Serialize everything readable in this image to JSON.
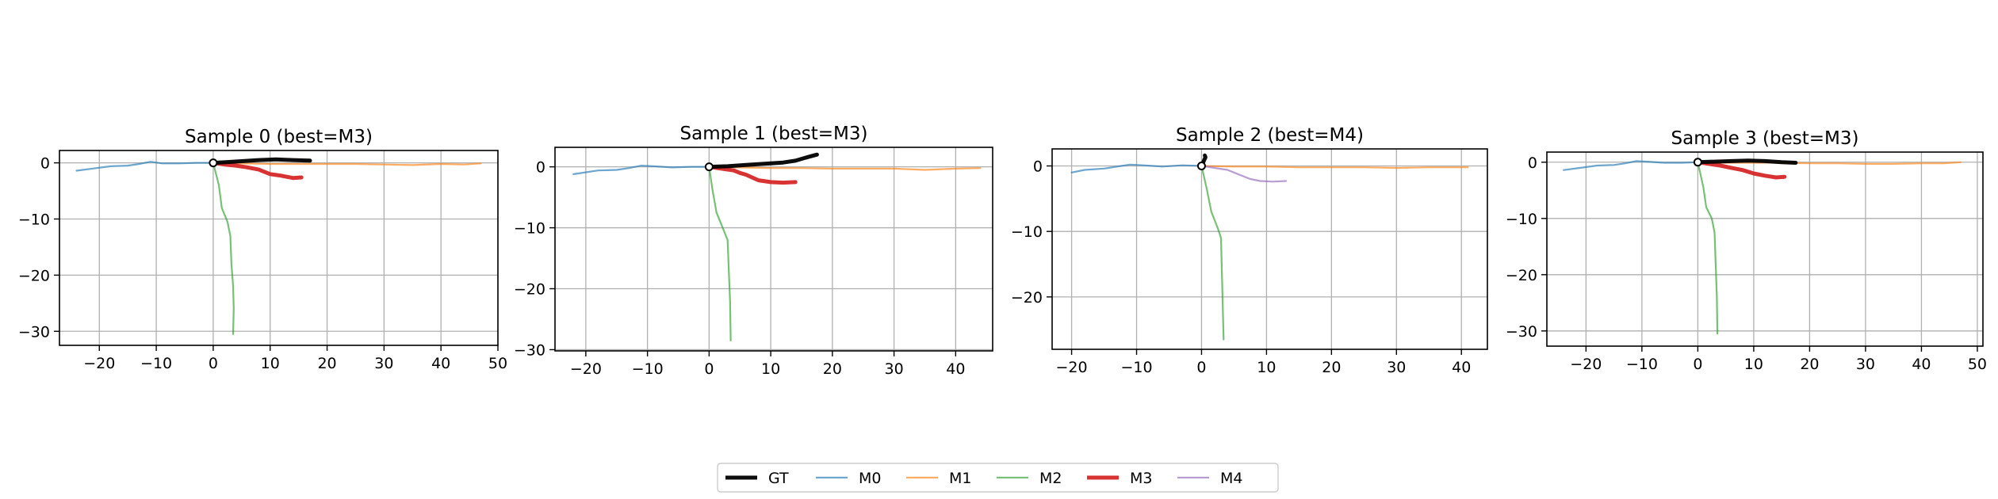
{
  "legend": {
    "placement": "bottom-center",
    "entries": [
      {
        "label": "GT",
        "color": "#000000",
        "weight": "thick"
      },
      {
        "label": "M0",
        "color": "#1f77b4",
        "weight": "thin"
      },
      {
        "label": "M1",
        "color": "#ff7f0e",
        "weight": "thin"
      },
      {
        "label": "M2",
        "color": "#2ca02c",
        "weight": "thin"
      },
      {
        "label": "M3",
        "color": "#d62728",
        "weight": "thick"
      },
      {
        "label": "M4",
        "color": "#9467bd",
        "weight": "thin"
      }
    ]
  },
  "chart_data": [
    {
      "type": "line",
      "title": "Sample 0 (best=M3)",
      "xlabel": "",
      "ylabel": "",
      "xlim": [
        -27,
        50
      ],
      "ylim": [
        -32.5,
        2.2
      ],
      "xticks": [
        -20,
        -10,
        0,
        10,
        20,
        30,
        40,
        50
      ],
      "yticks": [
        0,
        -10,
        -20,
        -30
      ],
      "grid": true,
      "origin_marker": [
        0,
        0
      ],
      "series": [
        {
          "name": "GT",
          "x": [
            0,
            2,
            5,
            8,
            11,
            14,
            17
          ],
          "y": [
            0,
            0.1,
            0.3,
            0.5,
            0.6,
            0.5,
            0.4
          ]
        },
        {
          "name": "M0",
          "x": [
            0,
            -3,
            -6,
            -9,
            -11,
            -13,
            -15,
            -18,
            -21,
            -24
          ],
          "y": [
            0,
            0,
            -0.1,
            -0.1,
            0.2,
            -0.2,
            -0.5,
            -0.6,
            -1.0,
            -1.4
          ]
        },
        {
          "name": "M1",
          "x": [
            0,
            5,
            10,
            15,
            20,
            25,
            30,
            35,
            40,
            44,
            47
          ],
          "y": [
            0,
            -0.1,
            -0.2,
            -0.2,
            -0.2,
            -0.2,
            -0.3,
            -0.4,
            -0.2,
            -0.3,
            -0.1
          ]
        },
        {
          "name": "M2",
          "x": [
            0,
            1,
            1.5,
            2.5,
            3,
            3.2,
            3.5,
            3.6,
            3.5
          ],
          "y": [
            0,
            -4,
            -8,
            -10.5,
            -13,
            -18,
            -22,
            -26,
            -30.5
          ]
        },
        {
          "name": "M3",
          "x": [
            0,
            2,
            4,
            6,
            8,
            9,
            10,
            12,
            14,
            15.5
          ],
          "y": [
            0,
            -0.3,
            -0.5,
            -0.8,
            -1.2,
            -1.6,
            -2.0,
            -2.3,
            -2.7,
            -2.6
          ]
        },
        {
          "name": "M4",
          "x": [],
          "y": []
        }
      ]
    },
    {
      "type": "line",
      "title": "Sample 1 (best=M3)",
      "xlabel": "",
      "ylabel": "",
      "xlim": [
        -25,
        46
      ],
      "ylim": [
        -30.2,
        3.2
      ],
      "xticks": [
        -20,
        -10,
        0,
        10,
        20,
        30,
        40
      ],
      "yticks": [
        0,
        -10,
        -20,
        -30
      ],
      "grid": true,
      "origin_marker": [
        0,
        0
      ],
      "series": [
        {
          "name": "GT",
          "x": [
            0,
            3,
            6,
            9,
            12,
            14,
            16,
            17.5
          ],
          "y": [
            0,
            0.1,
            0.3,
            0.5,
            0.7,
            1.0,
            1.6,
            2.0
          ]
        },
        {
          "name": "M0",
          "x": [
            0,
            -3,
            -6,
            -9,
            -11,
            -13,
            -15,
            -18,
            -22
          ],
          "y": [
            0,
            0,
            -0.1,
            0.1,
            0.2,
            -0.2,
            -0.5,
            -0.6,
            -1.2
          ]
        },
        {
          "name": "M1",
          "x": [
            0,
            5,
            10,
            15,
            20,
            25,
            30,
            35,
            40,
            44
          ],
          "y": [
            0,
            -0.1,
            -0.2,
            -0.2,
            -0.3,
            -0.3,
            -0.3,
            -0.5,
            -0.3,
            -0.2
          ]
        },
        {
          "name": "M2",
          "x": [
            0,
            0.5,
            1.2,
            2,
            3,
            3.2,
            3.4,
            3.5
          ],
          "y": [
            0,
            -3.5,
            -7.5,
            -9.5,
            -12,
            -17,
            -22,
            -28.5
          ]
        },
        {
          "name": "M3",
          "x": [
            0,
            2,
            4,
            5,
            6,
            8,
            10,
            12,
            14
          ],
          "y": [
            0,
            -0.3,
            -0.6,
            -1.0,
            -1.3,
            -2.2,
            -2.5,
            -2.6,
            -2.5
          ]
        },
        {
          "name": "M4",
          "x": [],
          "y": []
        }
      ]
    },
    {
      "type": "line",
      "title": "Sample 2 (best=M4)",
      "xlabel": "",
      "ylabel": "",
      "xlim": [
        -23,
        44
      ],
      "ylim": [
        -28,
        2.6
      ],
      "xticks": [
        -20,
        -10,
        0,
        10,
        20,
        30,
        40
      ],
      "yticks": [
        0,
        -10,
        -20
      ],
      "grid": true,
      "origin_marker": [
        0,
        0
      ],
      "series": [
        {
          "name": "GT",
          "x": [
            0,
            0.2,
            0.4,
            0.6,
            0.5
          ],
          "y": [
            0,
            0.4,
            0.9,
            1.3,
            1.6
          ]
        },
        {
          "name": "M0",
          "x": [
            0,
            -3,
            -6,
            -9,
            -11,
            -13,
            -15,
            -18,
            -20
          ],
          "y": [
            0,
            0.1,
            -0.1,
            0.1,
            0.2,
            -0.1,
            -0.4,
            -0.6,
            -1.0
          ]
        },
        {
          "name": "M1",
          "x": [
            0,
            5,
            10,
            15,
            20,
            25,
            30,
            35,
            41
          ],
          "y": [
            0,
            -0.1,
            -0.1,
            -0.2,
            -0.2,
            -0.2,
            -0.3,
            -0.2,
            -0.2
          ]
        },
        {
          "name": "M2",
          "x": [
            0,
            0.8,
            1.5,
            2.5,
            3,
            3.2,
            3.4
          ],
          "y": [
            0,
            -3.5,
            -7,
            -9.5,
            -11,
            -19,
            -26.5
          ]
        },
        {
          "name": "M3",
          "x": [],
          "y": []
        },
        {
          "name": "M4",
          "x": [
            0,
            2,
            4,
            5,
            6,
            7.5,
            9,
            11,
            13
          ],
          "y": [
            0,
            -0.3,
            -0.6,
            -1.0,
            -1.4,
            -2.0,
            -2.3,
            -2.4,
            -2.3
          ]
        }
      ]
    },
    {
      "type": "line",
      "title": "Sample 3 (best=M3)",
      "xlabel": "",
      "ylabel": "",
      "xlim": [
        -27,
        51
      ],
      "ylim": [
        -32.7,
        1.8
      ],
      "xticks": [
        -20,
        -10,
        0,
        10,
        20,
        30,
        40,
        50
      ],
      "yticks": [
        0,
        -10,
        -20,
        -30
      ],
      "grid": true,
      "origin_marker": [
        0,
        0
      ],
      "series": [
        {
          "name": "GT",
          "x": [
            0,
            3,
            6,
            9,
            12,
            15,
            17.5
          ],
          "y": [
            0,
            0.1,
            0.2,
            0.3,
            0.2,
            0.0,
            -0.1
          ]
        },
        {
          "name": "M0",
          "x": [
            0,
            -3,
            -6,
            -9,
            -11,
            -13,
            -15,
            -18,
            -21,
            -24
          ],
          "y": [
            0,
            -0.1,
            -0.1,
            0.1,
            0.2,
            -0.2,
            -0.5,
            -0.6,
            -1.0,
            -1.4
          ]
        },
        {
          "name": "M1",
          "x": [
            0,
            5,
            10,
            15,
            20,
            25,
            30,
            35,
            40,
            44,
            47
          ],
          "y": [
            0,
            -0.1,
            -0.1,
            -0.1,
            -0.2,
            -0.2,
            -0.3,
            -0.3,
            -0.2,
            -0.2,
            0.0
          ]
        },
        {
          "name": "M2",
          "x": [
            0,
            1,
            1.5,
            2.5,
            3,
            3.2,
            3.4,
            3.5
          ],
          "y": [
            0,
            -4.5,
            -8,
            -10,
            -12.5,
            -18,
            -24,
            -30.5
          ]
        },
        {
          "name": "M3",
          "x": [
            0,
            2,
            4,
            6,
            8,
            10,
            12,
            14,
            15.5
          ],
          "y": [
            0,
            -0.3,
            -0.6,
            -1.0,
            -1.4,
            -2.0,
            -2.4,
            -2.7,
            -2.6
          ]
        },
        {
          "name": "M4",
          "x": [],
          "y": []
        }
      ]
    }
  ]
}
